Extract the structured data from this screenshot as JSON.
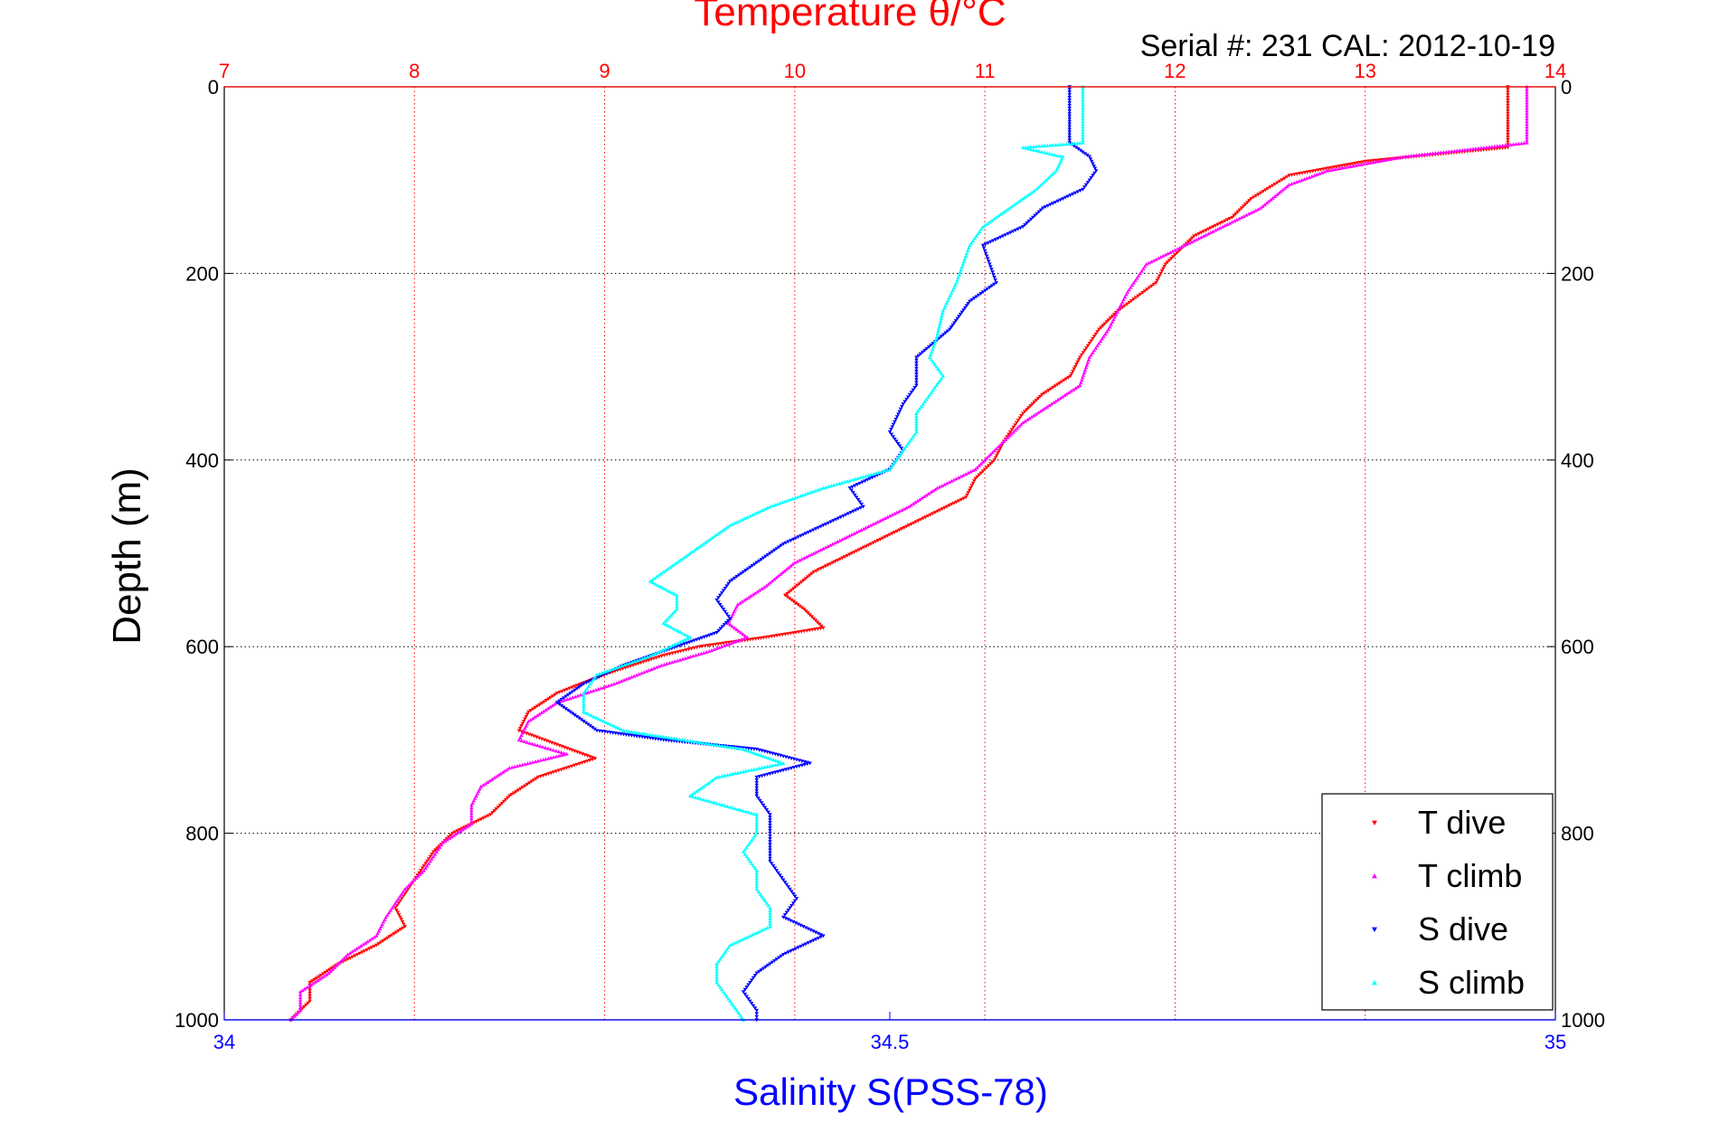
{
  "chart_data": {
    "type": "scatter",
    "title": "Temperature θ/°C",
    "subtitle": "Serial #: 231  CAL: 2012-10-19",
    "xlabel_bottom": "Salinity S(PSS-78)",
    "ylabel": "Depth (m)",
    "x_top": {
      "label": "Temperature θ/°C",
      "range": [
        7,
        14
      ],
      "ticks": [
        "7",
        "8",
        "9",
        "10",
        "11",
        "12",
        "13",
        "14"
      ],
      "color": "#ff0000"
    },
    "x_bottom": {
      "label": "Salinity S(PSS-78)",
      "range": [
        34,
        35
      ],
      "ticks": [
        "34",
        "34.5",
        "35"
      ],
      "color": "#0000ff"
    },
    "y": {
      "label": "Depth (m)",
      "range": [
        0,
        1000
      ],
      "reversed": true,
      "ticks": [
        "0",
        "200",
        "400",
        "600",
        "800",
        "1000"
      ],
      "color": "#000000"
    },
    "grid": true,
    "legend_position": "bottom-right",
    "series": [
      {
        "name": "T dive",
        "axis": "temperature",
        "color": "#ff0000",
        "marker": "triangle-down",
        "points": [
          [
            13.75,
            0
          ],
          [
            13.75,
            20
          ],
          [
            13.75,
            40
          ],
          [
            13.75,
            65
          ],
          [
            13.0,
            80
          ],
          [
            12.6,
            95
          ],
          [
            12.4,
            120
          ],
          [
            12.3,
            140
          ],
          [
            12.1,
            160
          ],
          [
            11.95,
            190
          ],
          [
            11.9,
            210
          ],
          [
            11.7,
            240
          ],
          [
            11.6,
            260
          ],
          [
            11.5,
            290
          ],
          [
            11.45,
            310
          ],
          [
            11.3,
            330
          ],
          [
            11.2,
            350
          ],
          [
            11.1,
            380
          ],
          [
            11.05,
            400
          ],
          [
            10.95,
            420
          ],
          [
            10.9,
            440
          ],
          [
            10.7,
            460
          ],
          [
            10.5,
            480
          ],
          [
            10.3,
            500
          ],
          [
            10.1,
            520
          ],
          [
            9.95,
            545
          ],
          [
            10.05,
            560
          ],
          [
            10.15,
            580
          ],
          [
            9.85,
            590
          ],
          [
            9.5,
            600
          ],
          [
            9.3,
            610
          ],
          [
            9.0,
            630
          ],
          [
            8.75,
            650
          ],
          [
            8.6,
            670
          ],
          [
            8.55,
            690
          ],
          [
            8.75,
            705
          ],
          [
            8.95,
            720
          ],
          [
            8.65,
            740
          ],
          [
            8.5,
            760
          ],
          [
            8.4,
            780
          ],
          [
            8.2,
            800
          ],
          [
            8.1,
            820
          ],
          [
            8.0,
            850
          ],
          [
            7.9,
            880
          ],
          [
            7.95,
            900
          ],
          [
            7.8,
            920
          ],
          [
            7.6,
            940
          ],
          [
            7.45,
            960
          ],
          [
            7.45,
            980
          ],
          [
            7.35,
            1000
          ]
        ]
      },
      {
        "name": "T climb",
        "axis": "temperature",
        "color": "#ff00ff",
        "marker": "triangle-up",
        "points": [
          [
            13.85,
            0
          ],
          [
            13.85,
            20
          ],
          [
            13.85,
            40
          ],
          [
            13.85,
            60
          ],
          [
            13.2,
            75
          ],
          [
            12.8,
            90
          ],
          [
            12.6,
            105
          ],
          [
            12.45,
            130
          ],
          [
            12.25,
            150
          ],
          [
            12.1,
            165
          ],
          [
            11.85,
            190
          ],
          [
            11.75,
            220
          ],
          [
            11.65,
            260
          ],
          [
            11.55,
            290
          ],
          [
            11.5,
            320
          ],
          [
            11.35,
            340
          ],
          [
            11.2,
            360
          ],
          [
            11.05,
            390
          ],
          [
            10.95,
            410
          ],
          [
            10.75,
            430
          ],
          [
            10.6,
            450
          ],
          [
            10.4,
            470
          ],
          [
            10.2,
            490
          ],
          [
            10.0,
            510
          ],
          [
            9.85,
            535
          ],
          [
            9.7,
            555
          ],
          [
            9.65,
            575
          ],
          [
            9.75,
            590
          ],
          [
            9.55,
            605
          ],
          [
            9.3,
            620
          ],
          [
            9.05,
            640
          ],
          [
            8.75,
            660
          ],
          [
            8.6,
            680
          ],
          [
            8.55,
            700
          ],
          [
            8.8,
            715
          ],
          [
            8.5,
            730
          ],
          [
            8.35,
            750
          ],
          [
            8.3,
            770
          ],
          [
            8.3,
            790
          ],
          [
            8.15,
            810
          ],
          [
            8.05,
            840
          ],
          [
            7.95,
            860
          ],
          [
            7.85,
            890
          ],
          [
            7.8,
            910
          ],
          [
            7.65,
            930
          ],
          [
            7.55,
            950
          ],
          [
            7.4,
            970
          ],
          [
            7.4,
            990
          ],
          [
            7.35,
            1000
          ]
        ]
      },
      {
        "name": "S dive",
        "axis": "salinity",
        "color": "#0000ff",
        "marker": "triangle-down",
        "points": [
          [
            34.635,
            0
          ],
          [
            34.635,
            20
          ],
          [
            34.635,
            40
          ],
          [
            34.635,
            60
          ],
          [
            34.65,
            75
          ],
          [
            34.655,
            90
          ],
          [
            34.645,
            110
          ],
          [
            34.615,
            130
          ],
          [
            34.6,
            150
          ],
          [
            34.57,
            170
          ],
          [
            34.575,
            190
          ],
          [
            34.58,
            210
          ],
          [
            34.56,
            230
          ],
          [
            34.545,
            260
          ],
          [
            34.52,
            290
          ],
          [
            34.52,
            320
          ],
          [
            34.51,
            340
          ],
          [
            34.5,
            370
          ],
          [
            34.51,
            390
          ],
          [
            34.5,
            410
          ],
          [
            34.47,
            430
          ],
          [
            34.48,
            450
          ],
          [
            34.45,
            470
          ],
          [
            34.42,
            490
          ],
          [
            34.4,
            510
          ],
          [
            34.38,
            530
          ],
          [
            34.37,
            550
          ],
          [
            34.38,
            570
          ],
          [
            34.37,
            585
          ],
          [
            34.34,
            600
          ],
          [
            34.3,
            620
          ],
          [
            34.27,
            640
          ],
          [
            34.25,
            660
          ],
          [
            34.28,
            690
          ],
          [
            34.33,
            700
          ],
          [
            34.4,
            710
          ],
          [
            34.44,
            725
          ],
          [
            34.4,
            740
          ],
          [
            34.4,
            760
          ],
          [
            34.41,
            780
          ],
          [
            34.41,
            800
          ],
          [
            34.41,
            830
          ],
          [
            34.42,
            850
          ],
          [
            34.43,
            870
          ],
          [
            34.42,
            890
          ],
          [
            34.45,
            910
          ],
          [
            34.42,
            930
          ],
          [
            34.4,
            950
          ],
          [
            34.39,
            970
          ],
          [
            34.4,
            990
          ],
          [
            34.4,
            1000
          ]
        ]
      },
      {
        "name": "S climb",
        "axis": "salinity",
        "color": "#00ffff",
        "marker": "triangle-up",
        "points": [
          [
            34.645,
            0
          ],
          [
            34.645,
            20
          ],
          [
            34.645,
            40
          ],
          [
            34.645,
            60
          ],
          [
            34.6,
            65
          ],
          [
            34.63,
            75
          ],
          [
            34.625,
            90
          ],
          [
            34.61,
            110
          ],
          [
            34.59,
            130
          ],
          [
            34.57,
            150
          ],
          [
            34.56,
            170
          ],
          [
            34.555,
            190
          ],
          [
            34.55,
            210
          ],
          [
            34.54,
            240
          ],
          [
            34.535,
            270
          ],
          [
            34.53,
            290
          ],
          [
            34.54,
            310
          ],
          [
            34.53,
            330
          ],
          [
            34.52,
            350
          ],
          [
            34.52,
            370
          ],
          [
            34.51,
            390
          ],
          [
            34.5,
            410
          ],
          [
            34.45,
            430
          ],
          [
            34.41,
            450
          ],
          [
            34.38,
            470
          ],
          [
            34.36,
            490
          ],
          [
            34.34,
            510
          ],
          [
            34.32,
            530
          ],
          [
            34.34,
            545
          ],
          [
            34.34,
            560
          ],
          [
            34.33,
            575
          ],
          [
            34.35,
            590
          ],
          [
            34.32,
            610
          ],
          [
            34.28,
            630
          ],
          [
            34.27,
            650
          ],
          [
            34.27,
            670
          ],
          [
            34.3,
            690
          ],
          [
            34.39,
            710
          ],
          [
            34.42,
            725
          ],
          [
            34.37,
            740
          ],
          [
            34.35,
            760
          ],
          [
            34.4,
            780
          ],
          [
            34.4,
            800
          ],
          [
            34.39,
            820
          ],
          [
            34.4,
            840
          ],
          [
            34.4,
            860
          ],
          [
            34.41,
            880
          ],
          [
            34.41,
            900
          ],
          [
            34.38,
            920
          ],
          [
            34.37,
            940
          ],
          [
            34.37,
            960
          ],
          [
            34.38,
            980
          ],
          [
            34.39,
            1000
          ]
        ]
      }
    ],
    "legend": [
      "T dive",
      "T climb",
      "S dive",
      "S climb"
    ]
  }
}
